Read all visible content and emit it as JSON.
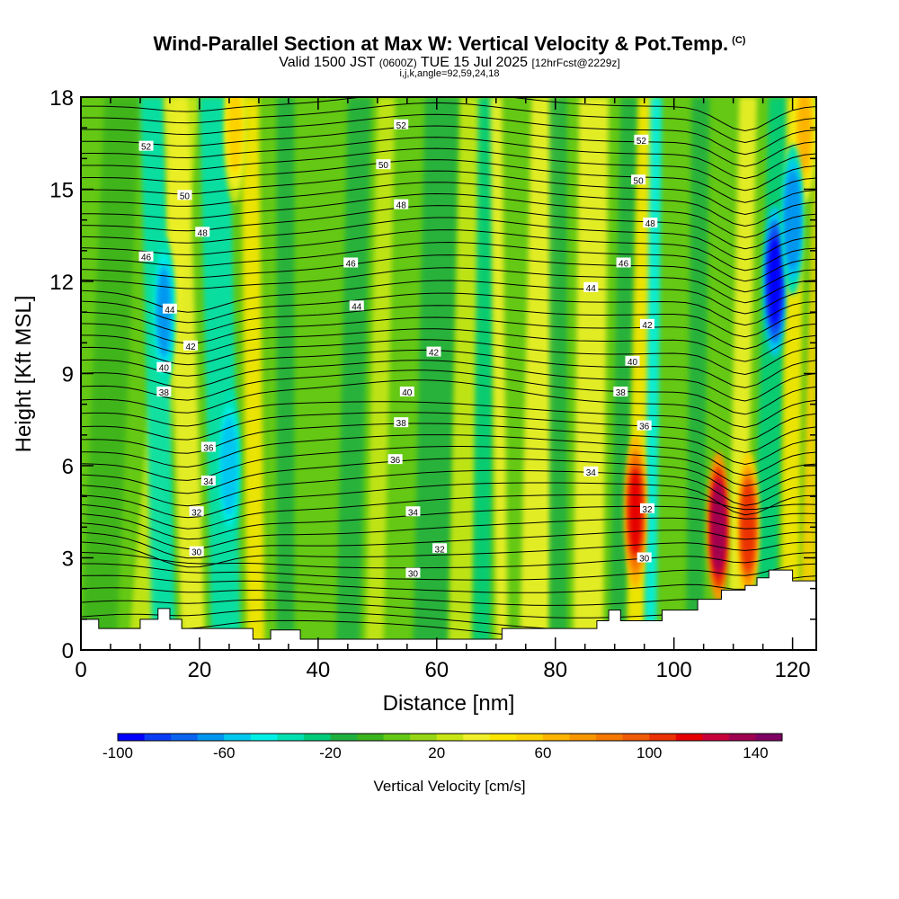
{
  "header": {
    "title": "Wind-Parallel Section at Max W: Vertical Velocity & Pot.Temp.",
    "corner_mark": "(C)",
    "valid_prefix": "Valid 1500 JST",
    "valid_utc": "(0600Z)",
    "valid_date": "TUE 15 Jul 2025",
    "forecast": "[12hrFcst@2229z]",
    "indices": "i,j,k,angle=92,59,24,18"
  },
  "chart_data": {
    "type": "heatmap",
    "xlabel": "Distance [nm]",
    "ylabel": "Height [Kft MSL]",
    "xlim": [
      0,
      124
    ],
    "ylim": [
      0,
      18
    ],
    "x_ticks": [
      0,
      20,
      40,
      60,
      80,
      100,
      120
    ],
    "y_ticks": [
      0,
      3,
      6,
      9,
      12,
      15,
      18
    ],
    "colorbar": {
      "label": "Vertical Velocity [cm/s]",
      "range": [
        -100,
        150
      ],
      "step": 10,
      "tick_values": [
        -100,
        -60,
        -20,
        20,
        60,
        100,
        140
      ],
      "colors": [
        "#0000ff",
        "#0a3cf5",
        "#0a64f0",
        "#0096f0",
        "#00c8f0",
        "#00f0e6",
        "#00e0b0",
        "#00cc7a",
        "#20b040",
        "#3cb41e",
        "#64c814",
        "#96d614",
        "#c8e614",
        "#f0f028",
        "#fae600",
        "#fcd200",
        "#fcb400",
        "#f99600",
        "#f57800",
        "#f05a00",
        "#eb3200",
        "#e60000",
        "#c8003c",
        "#a00050",
        "#800064",
        "#5a0078"
      ]
    },
    "updrafts_cm_s": [
      {
        "x": 93.5,
        "z": 4.5,
        "w": 110
      },
      {
        "x": 107.5,
        "z": 4.0,
        "w": 135
      },
      {
        "x": 112.5,
        "z": 4.0,
        "w": 100
      },
      {
        "x": 26,
        "z": 17,
        "w": 50
      },
      {
        "x": 122,
        "z": 17,
        "w": 60
      }
    ],
    "downdrafts_cm_s": [
      {
        "x": 14,
        "z": 11,
        "w": -65
      },
      {
        "x": 25,
        "z": 6,
        "w": -60
      },
      {
        "x": 117,
        "z": 12,
        "w": -100
      },
      {
        "x": 120,
        "z": 14,
        "w": -70
      }
    ],
    "theta_contour_labels": [
      {
        "text": "52",
        "x": 11,
        "z": 16.4
      },
      {
        "text": "50",
        "x": 17.5,
        "z": 14.8
      },
      {
        "text": "48",
        "x": 20.5,
        "z": 13.6
      },
      {
        "text": "46",
        "x": 11,
        "z": 12.8
      },
      {
        "text": "44",
        "x": 15,
        "z": 11.1
      },
      {
        "text": "42",
        "x": 18.5,
        "z": 9.9
      },
      {
        "text": "40",
        "x": 14,
        "z": 9.2
      },
      {
        "text": "38",
        "x": 14,
        "z": 8.4
      },
      {
        "text": "36",
        "x": 21.5,
        "z": 6.6
      },
      {
        "text": "34",
        "x": 21.5,
        "z": 5.5
      },
      {
        "text": "32",
        "x": 19.5,
        "z": 4.5
      },
      {
        "text": "30",
        "x": 19.5,
        "z": 3.2
      },
      {
        "text": "52",
        "x": 54,
        "z": 17.1
      },
      {
        "text": "50",
        "x": 51,
        "z": 15.8
      },
      {
        "text": "48",
        "x": 54,
        "z": 14.5
      },
      {
        "text": "46",
        "x": 45.5,
        "z": 12.6
      },
      {
        "text": "44",
        "x": 46.5,
        "z": 11.2
      },
      {
        "text": "42",
        "x": 59.5,
        "z": 9.7
      },
      {
        "text": "40",
        "x": 55,
        "z": 8.4
      },
      {
        "text": "38",
        "x": 54,
        "z": 7.4
      },
      {
        "text": "36",
        "x": 53,
        "z": 6.2
      },
      {
        "text": "34",
        "x": 56,
        "z": 4.5
      },
      {
        "text": "32",
        "x": 60.5,
        "z": 3.3
      },
      {
        "text": "30",
        "x": 56,
        "z": 2.5
      },
      {
        "text": "52",
        "x": 94.5,
        "z": 16.6
      },
      {
        "text": "50",
        "x": 94,
        "z": 15.3
      },
      {
        "text": "48",
        "x": 96,
        "z": 13.9
      },
      {
        "text": "46",
        "x": 91.5,
        "z": 12.6
      },
      {
        "text": "44",
        "x": 86,
        "z": 11.8
      },
      {
        "text": "42",
        "x": 95.5,
        "z": 10.6
      },
      {
        "text": "40",
        "x": 93,
        "z": 9.4
      },
      {
        "text": "38",
        "x": 91,
        "z": 8.4
      },
      {
        "text": "36",
        "x": 95,
        "z": 7.3
      },
      {
        "text": "34",
        "x": 86,
        "z": 5.8
      },
      {
        "text": "32",
        "x": 95.5,
        "z": 4.6
      },
      {
        "text": "30",
        "x": 95,
        "z": 3.0
      }
    ],
    "terrain_kft": [
      [
        0,
        1.0
      ],
      [
        3,
        1.0
      ],
      [
        3,
        0.7
      ],
      [
        10,
        0.7
      ],
      [
        10,
        1.0
      ],
      [
        13,
        1.0
      ],
      [
        13,
        1.35
      ],
      [
        15,
        1.35
      ],
      [
        15,
        1.0
      ],
      [
        17,
        1.0
      ],
      [
        17,
        0.7
      ],
      [
        29,
        0.7
      ],
      [
        29,
        0.35
      ],
      [
        32,
        0.35
      ],
      [
        32,
        0.65
      ],
      [
        37,
        0.65
      ],
      [
        37,
        0.35
      ],
      [
        71,
        0.35
      ],
      [
        71,
        0.7
      ],
      [
        87,
        0.7
      ],
      [
        87,
        0.95
      ],
      [
        89,
        0.95
      ],
      [
        89,
        1.3
      ],
      [
        91,
        1.3
      ],
      [
        91,
        0.95
      ],
      [
        98,
        0.95
      ],
      [
        98,
        1.3
      ],
      [
        104,
        1.3
      ],
      [
        104,
        1.65
      ],
      [
        108,
        1.65
      ],
      [
        108,
        1.95
      ],
      [
        112,
        1.95
      ],
      [
        112,
        2.1
      ],
      [
        114,
        2.1
      ],
      [
        114,
        2.35
      ],
      [
        116,
        2.35
      ],
      [
        116,
        2.6
      ],
      [
        120,
        2.6
      ],
      [
        120,
        2.25
      ],
      [
        124,
        2.25
      ],
      [
        124,
        0
      ]
    ]
  }
}
